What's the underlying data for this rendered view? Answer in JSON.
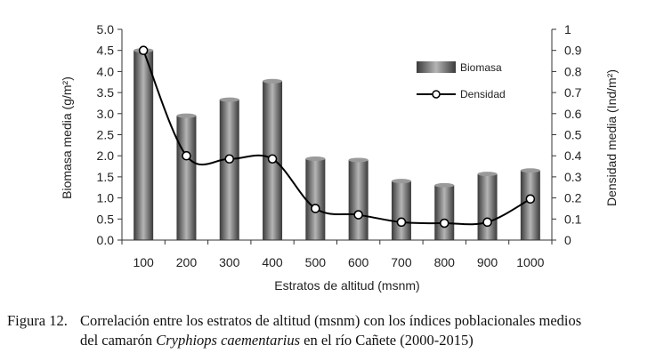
{
  "chart_data": {
    "type": "bar",
    "categories": [
      "100",
      "200",
      "300",
      "400",
      "500",
      "600",
      "700",
      "800",
      "900",
      "1000"
    ],
    "series": [
      {
        "name": "Biomasa",
        "type": "bar",
        "axis": "left",
        "values": [
          4.5,
          2.95,
          3.33,
          3.77,
          1.93,
          1.9,
          1.4,
          1.3,
          1.57,
          1.65
        ]
      },
      {
        "name": "Densidad",
        "type": "line",
        "axis": "right",
        "values": [
          0.9,
          0.4,
          0.385,
          0.385,
          0.15,
          0.12,
          0.085,
          0.08,
          0.085,
          0.195
        ]
      }
    ],
    "xlabel": "Estratos de altitud (msnm)",
    "ylabel": "Biomasa media (g/m²)",
    "y2label": "Densidad media (Ind/m²)",
    "ylim": [
      0,
      5.0
    ],
    "y2lim": [
      0,
      1
    ],
    "yticks": [
      "0.0",
      "0.5",
      "1.0",
      "1.5",
      "2.0",
      "2.5",
      "3.0",
      "3.5",
      "4.0",
      "4.5",
      "5.0"
    ],
    "y2ticks": [
      "0",
      "0.1",
      "0.2",
      "0.3",
      "0.4",
      "0.5",
      "0.6",
      "0.7",
      "0.8",
      "0.9",
      "1"
    ],
    "legend_position": "top-right",
    "grid": false,
    "colors": {
      "bar_dark": "#3a3a3a",
      "bar_light": "#b5b5b5",
      "line": "#000000",
      "marker_fill": "#ffffff"
    }
  },
  "caption": {
    "label": "Figura 12.",
    "line1": "Correlación entre los estratos de altitud (msnm) con los índices poblacionales medios",
    "line2_prefix": "del camarón ",
    "line2_italic": "Cryphiops caementarius",
    "line2_suffix": " en el río Cañete (2000-2015)"
  }
}
